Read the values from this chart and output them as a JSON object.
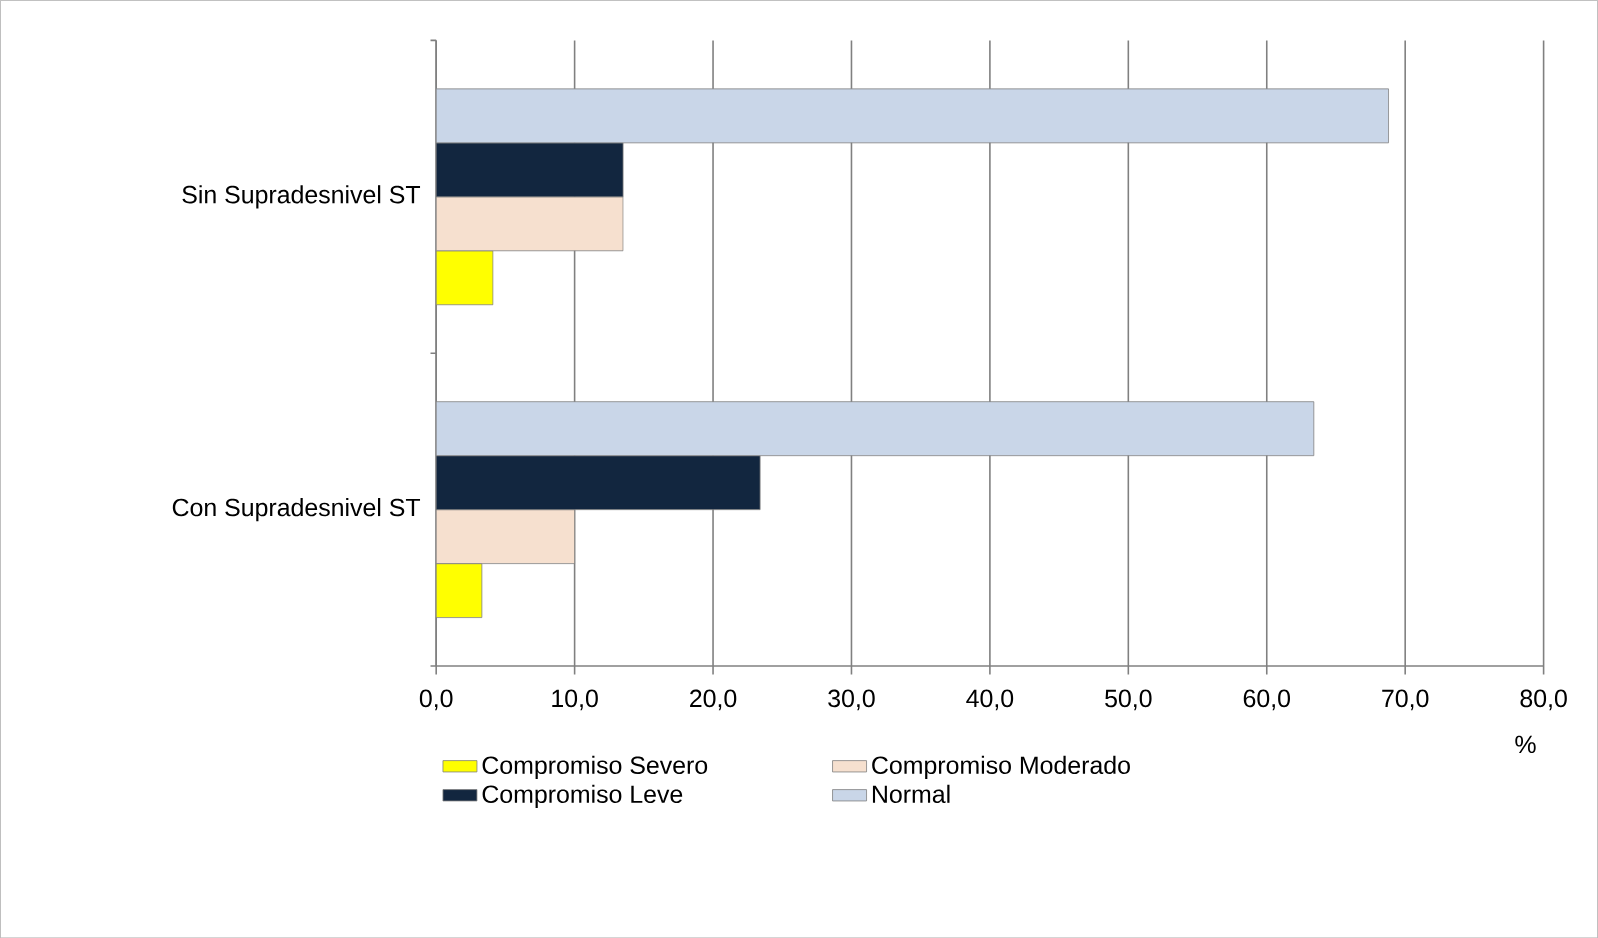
{
  "chart_data": {
    "type": "bar",
    "orientation": "horizontal",
    "xlabel": "%",
    "categories": [
      "Sin Supradesnivel ST",
      "Con Supradesnivel ST"
    ],
    "series": [
      {
        "name": "Compromiso Severo",
        "color": "#ffff00",
        "values": [
          4.1,
          3.3
        ]
      },
      {
        "name": "Compromiso Moderado",
        "color": "#f6e0cf",
        "values": [
          13.5,
          10.0
        ]
      },
      {
        "name": "Compromiso Leve",
        "color": "#12263f",
        "values": [
          13.5,
          23.4
        ]
      },
      {
        "name": "Normal",
        "color": "#c9d6e8",
        "values": [
          68.8,
          63.4
        ]
      }
    ],
    "xlim": [
      0,
      80
    ],
    "xticks": [
      {
        "value": 0,
        "label": "0,0"
      },
      {
        "value": 10,
        "label": "10,0"
      },
      {
        "value": 20,
        "label": "20,0"
      },
      {
        "value": 30,
        "label": "30,0"
      },
      {
        "value": 40,
        "label": "40,0"
      },
      {
        "value": 50,
        "label": "50,0"
      },
      {
        "value": 60,
        "label": "60,0"
      },
      {
        "value": 70,
        "label": "70,0"
      },
      {
        "value": 80,
        "label": "80,0"
      }
    ],
    "grid": "x",
    "legend": "bottom"
  }
}
